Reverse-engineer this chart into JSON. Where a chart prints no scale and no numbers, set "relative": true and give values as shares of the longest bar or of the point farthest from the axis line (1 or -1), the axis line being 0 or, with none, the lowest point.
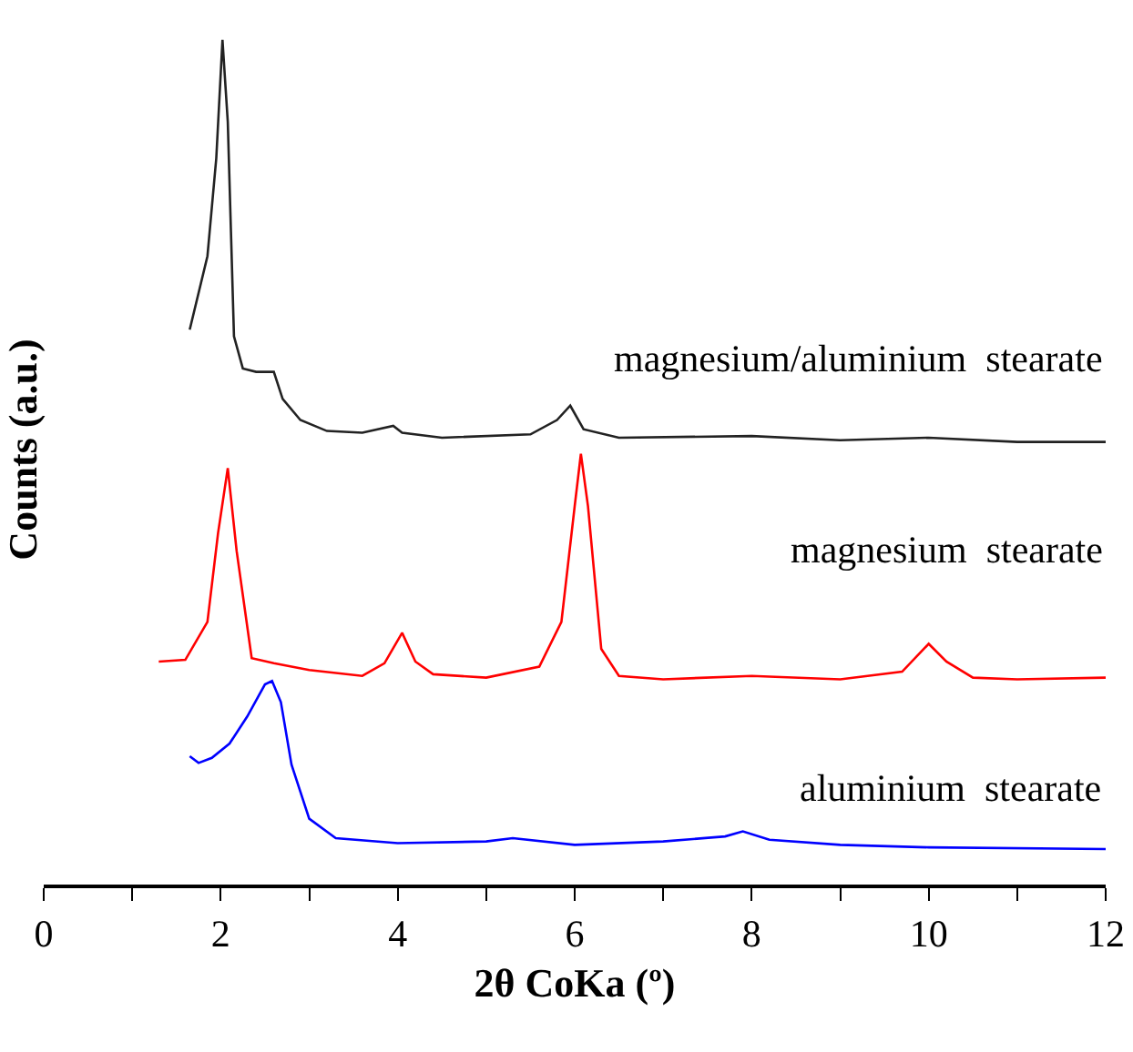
{
  "chart_data": {
    "type": "line",
    "xlabel": "2θ CoKa (º)",
    "ylabel": "Counts (a.u.)",
    "relative": true,
    "xlim": [
      0,
      12
    ],
    "xticks": [
      0,
      {
        "value": 1,
        "label": null
      },
      2,
      {
        "value": 3,
        "label": null
      },
      4,
      {
        "value": 5,
        "label": null
      },
      6,
      {
        "value": 7,
        "label": null
      },
      8,
      {
        "value": 9,
        "label": null
      },
      10,
      {
        "value": 11,
        "label": null
      },
      12
    ],
    "grid": false,
    "legend": false,
    "marker": "none",
    "line_style": "solid",
    "series": [
      {
        "name": "magnesium/aluminium  stearate",
        "color": "#222222",
        "x": [
          1.65,
          1.85,
          1.95,
          2.02,
          2.08,
          2.15,
          2.25,
          2.4,
          2.6,
          2.7,
          2.9,
          3.2,
          3.6,
          3.95,
          4.05,
          4.5,
          5.5,
          5.8,
          5.95,
          6.1,
          6.5,
          8,
          9,
          10,
          11,
          12
        ],
        "values": [
          0.657,
          0.744,
          0.86,
          1,
          0.903,
          0.649,
          0.611,
          0.607,
          0.607,
          0.575,
          0.55,
          0.537,
          0.535,
          0.543,
          0.535,
          0.529,
          0.533,
          0.55,
          0.567,
          0.539,
          0.529,
          0.531,
          0.526,
          0.529,
          0.524,
          0.524
        ]
      },
      {
        "name": "magnesium  stearate",
        "color": "#ff0000",
        "x": [
          1.3,
          1.6,
          1.85,
          1.97,
          2.08,
          2.18,
          2.35,
          2.6,
          3,
          3.6,
          3.85,
          4.05,
          4.2,
          4.4,
          5,
          5.6,
          5.85,
          6.0,
          6.07,
          6.15,
          6.3,
          6.5,
          7,
          8,
          9,
          9.7,
          10.0,
          10.2,
          10.5,
          11,
          12
        ],
        "values": [
          0.264,
          0.266,
          0.311,
          0.416,
          0.493,
          0.395,
          0.268,
          0.262,
          0.254,
          0.247,
          0.262,
          0.298,
          0.264,
          0.249,
          0.245,
          0.258,
          0.311,
          0.448,
          0.51,
          0.448,
          0.279,
          0.247,
          0.243,
          0.247,
          0.243,
          0.252,
          0.285,
          0.264,
          0.245,
          0.243,
          0.245
        ]
      },
      {
        "name": "aluminium  stearate",
        "color": "#0000ff",
        "x": [
          1.65,
          1.75,
          1.9,
          2.1,
          2.3,
          2.5,
          2.58,
          2.68,
          2.8,
          3.0,
          3.3,
          4,
          5,
          5.3,
          6,
          7,
          7.7,
          7.9,
          8.2,
          9,
          10,
          12
        ],
        "values": [
          0.152,
          0.144,
          0.15,
          0.167,
          0.199,
          0.237,
          0.241,
          0.216,
          0.142,
          0.078,
          0.055,
          0.049,
          0.051,
          0.055,
          0.047,
          0.051,
          0.057,
          0.063,
          0.053,
          0.047,
          0.044,
          0.042
        ]
      }
    ]
  }
}
